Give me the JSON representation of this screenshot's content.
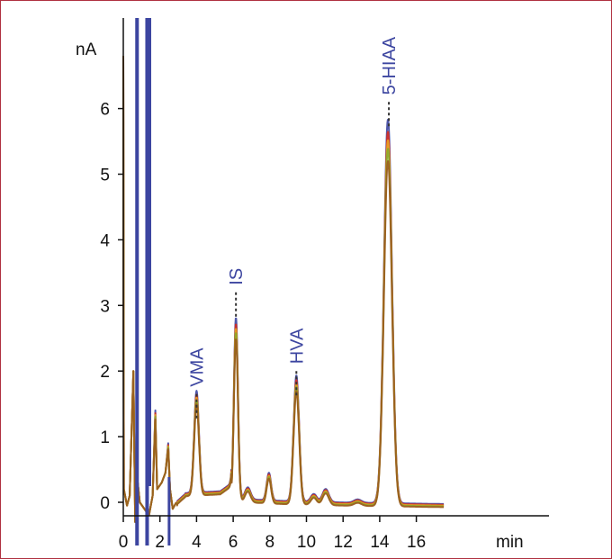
{
  "chart_data": {
    "type": "line",
    "title": "",
    "xlabel": "min",
    "ylabel": "nA",
    "xlim": [
      0,
      17.5
    ],
    "ylim": [
      -0.2,
      7.0
    ],
    "x_ticks": [
      "0",
      "2",
      "4",
      "6",
      "8",
      "10",
      "12",
      "14",
      "16"
    ],
    "y_ticks": [
      "0",
      "1",
      "2",
      "3",
      "4",
      "5",
      "6"
    ],
    "grid": false,
    "legend": "none",
    "peaks": [
      {
        "label": "VMA",
        "x": 4.0,
        "y": 1.65
      },
      {
        "label": "IS",
        "x": 6.15,
        "y": 3.2
      },
      {
        "label": "HVA",
        "x": 9.45,
        "y": 2.0
      },
      {
        "label": "5-HIAA",
        "x": 14.5,
        "y": 6.1
      }
    ],
    "series": [
      {
        "color": "#3c45a0",
        "amp": 1.0
      },
      {
        "color": "#d42a1e",
        "amp": 0.97
      },
      {
        "color": "#e8a020",
        "amp": 0.95
      },
      {
        "color": "#8ba82a",
        "amp": 0.93
      },
      {
        "color": "#9a5a1c",
        "amp": 0.9
      }
    ]
  },
  "colors": {
    "frame": "#b03040",
    "axis": "#111111",
    "peak_label": "#3c45a0"
  }
}
